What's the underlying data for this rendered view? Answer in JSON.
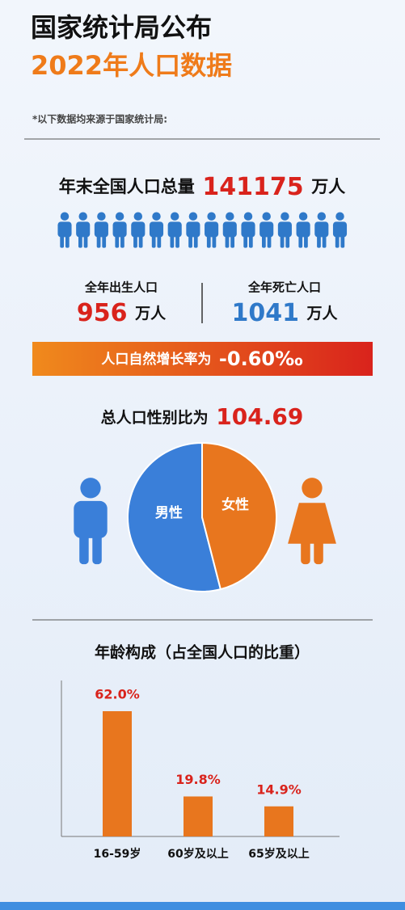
{
  "header": {
    "title": "国家统计局公布",
    "subtitle": "2022年人口数据",
    "note": "*以下数据均来源于国家统计局:"
  },
  "total": {
    "label": "年末全国人口总量",
    "value": 141175,
    "unit": "万人"
  },
  "births": {
    "label": "全年出生人口",
    "value": 956,
    "unit": "万人"
  },
  "deaths": {
    "label": "全年死亡人口",
    "value": 1041,
    "unit": "万人"
  },
  "growth": {
    "label": "人口自然增长率为",
    "value": "-0.60‰"
  },
  "sex_ratio": {
    "label": "总人口性别比为",
    "value": 104.69
  },
  "chart_data": [
    {
      "type": "pie",
      "categories": [
        "男性",
        "女性"
      ],
      "values": [
        54,
        46
      ],
      "colors": [
        "#3a7fd9",
        "#e8761e"
      ]
    },
    {
      "type": "bar",
      "title": "年龄构成（占全国人口的比重）",
      "categories": [
        "16-59岁",
        "60岁及以上",
        "65岁及以上"
      ],
      "values": [
        62.0,
        19.8,
        14.9
      ],
      "value_labels": [
        "62.0%",
        "19.8%",
        "14.9%"
      ],
      "color": "#e8761e"
    }
  ]
}
